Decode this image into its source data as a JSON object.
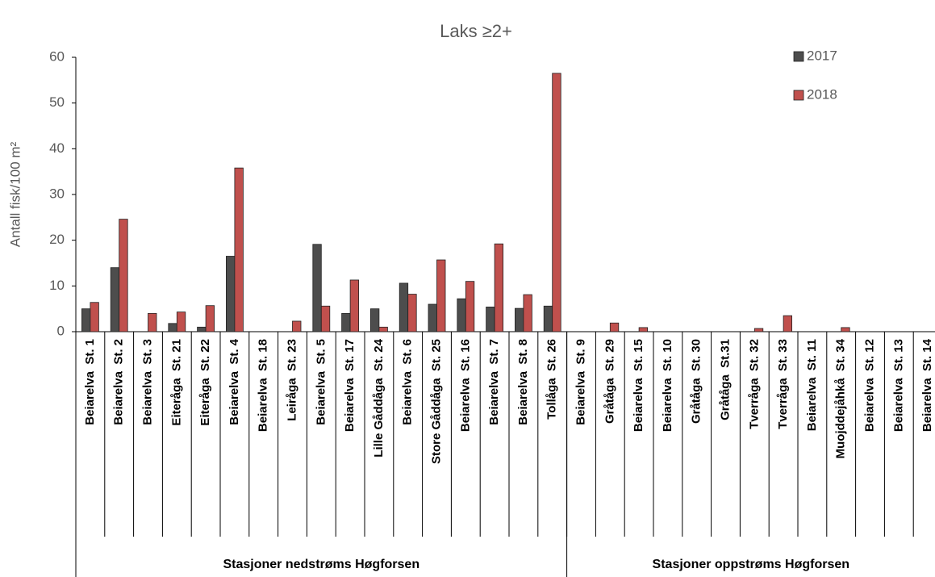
{
  "chart_data": {
    "type": "bar",
    "title": "Laks ≥2+",
    "y_label": "Antall fisk/100 m²",
    "categories": [
      "Beiarelva  St. 1",
      "Beiarelva  St. 2",
      "Beiarelva  St. 3",
      "Eiteråga  St. 21",
      "Eiteråga  St. 22",
      "Beiarelva  St. 4",
      "Beiarelva  St. 18",
      "Leiråga  St. 23",
      "Beiarelva  St. 5",
      "Beiarelva  St. 17",
      "Lille Gåddåga  St. 24",
      "Beiarelva  St. 6",
      "Store Gåddåga  St. 25",
      "Beiarelva  St. 16",
      "Beiarelva  St. 7",
      "Beiarelva  St. 8",
      "Tollåga  St. 26",
      "Beiarelva  St. 9",
      "Gråtåga  St. 29",
      "Beiarelva  St. 15",
      "Beiarelva  St. 10",
      "Gråtåga  St. 30",
      "Gråtåga  St.31",
      "Tverråga  St. 32",
      "Tverråga  St. 33",
      "Beiarelva  St. 11",
      "Muojddejåhkå  St. 34",
      "Beiarelva  St. 12",
      "Beiarelva  St. 13",
      "Beiarelva  St. 14"
    ],
    "groups": [
      {
        "label": "Stasjoner nedstrøms Høgforsen",
        "span": 17
      },
      {
        "label": "Stasjoner oppstrøms Høgforsen",
        "span": 13
      }
    ],
    "series": [
      {
        "name": "2017",
        "color": "#4d4d4d",
        "values": [
          5,
          14,
          0,
          1.8,
          1,
          16.5,
          0,
          0,
          19.1,
          4,
          5,
          10.6,
          6,
          7.2,
          5.4,
          5.1,
          5.6,
          0,
          0,
          0,
          0,
          0,
          0,
          0,
          0,
          0,
          0,
          0,
          0,
          0
        ]
      },
      {
        "name": "2018",
        "color": "#c0504d",
        "values": [
          6.4,
          24.6,
          4,
          4.3,
          5.7,
          35.8,
          0,
          2.3,
          5.6,
          11.3,
          1,
          8.2,
          15.7,
          11,
          19.2,
          8.1,
          56.5,
          0,
          1.9,
          0.9,
          0,
          0,
          0,
          0.7,
          3.5,
          0,
          0.9,
          0,
          0,
          0
        ]
      }
    ],
    "ylim": [
      0,
      60
    ],
    "yticks": [
      0,
      10,
      20,
      30,
      40,
      50,
      60
    ],
    "grid": false,
    "legend": "top-right"
  }
}
